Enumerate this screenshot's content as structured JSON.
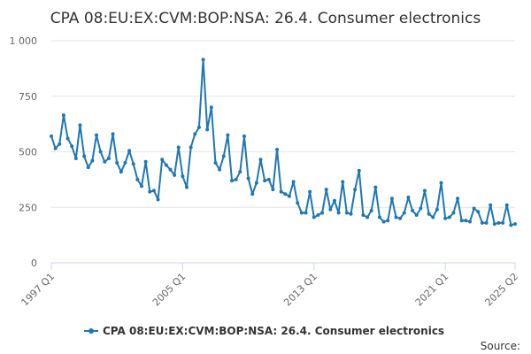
{
  "chart_data": {
    "type": "line",
    "title": "CPA 08:EU:EX:CVM:BOP:NSA: 26.4. Consumer electronics",
    "xlabel": "",
    "ylabel": "",
    "ylim": [
      0,
      1000
    ],
    "yticks": [
      {
        "value": 0,
        "label": "0"
      },
      {
        "value": 250,
        "label": "250"
      },
      {
        "value": 500,
        "label": "500"
      },
      {
        "value": 750,
        "label": "750"
      },
      {
        "value": 1000,
        "label": "1 000"
      }
    ],
    "xticks": [
      {
        "index": 0,
        "label": "1997 Q1"
      },
      {
        "index": 32,
        "label": "2005 Q1"
      },
      {
        "index": 64,
        "label": "2013 Q1"
      },
      {
        "index": 96,
        "label": "2021 Q1"
      },
      {
        "index": 113,
        "label": "2025 Q2"
      }
    ],
    "grid": true,
    "legend_position": "bottom",
    "color": "#1f77b4",
    "series": [
      {
        "name": "CPA 08:EU:EX:CVM:BOP:NSA: 26.4. Consumer electronics",
        "values": [
          570,
          515,
          535,
          665,
          560,
          525,
          470,
          620,
          480,
          430,
          460,
          575,
          500,
          455,
          470,
          580,
          450,
          410,
          450,
          505,
          445,
          375,
          345,
          455,
          320,
          325,
          285,
          465,
          440,
          420,
          395,
          520,
          390,
          340,
          520,
          580,
          610,
          915,
          600,
          700,
          450,
          420,
          480,
          575,
          370,
          375,
          410,
          570,
          380,
          310,
          360,
          465,
          370,
          375,
          330,
          510,
          320,
          310,
          300,
          365,
          270,
          225,
          225,
          320,
          205,
          215,
          225,
          330,
          240,
          280,
          225,
          365,
          225,
          220,
          330,
          415,
          215,
          205,
          235,
          340,
          205,
          185,
          190,
          290,
          205,
          200,
          225,
          295,
          235,
          215,
          245,
          325,
          220,
          205,
          240,
          360,
          200,
          205,
          225,
          290,
          190,
          190,
          185,
          245,
          230,
          180,
          180,
          260,
          175,
          180,
          180,
          260,
          170,
          175
        ]
      }
    ]
  },
  "source": {
    "label": "Source:"
  }
}
